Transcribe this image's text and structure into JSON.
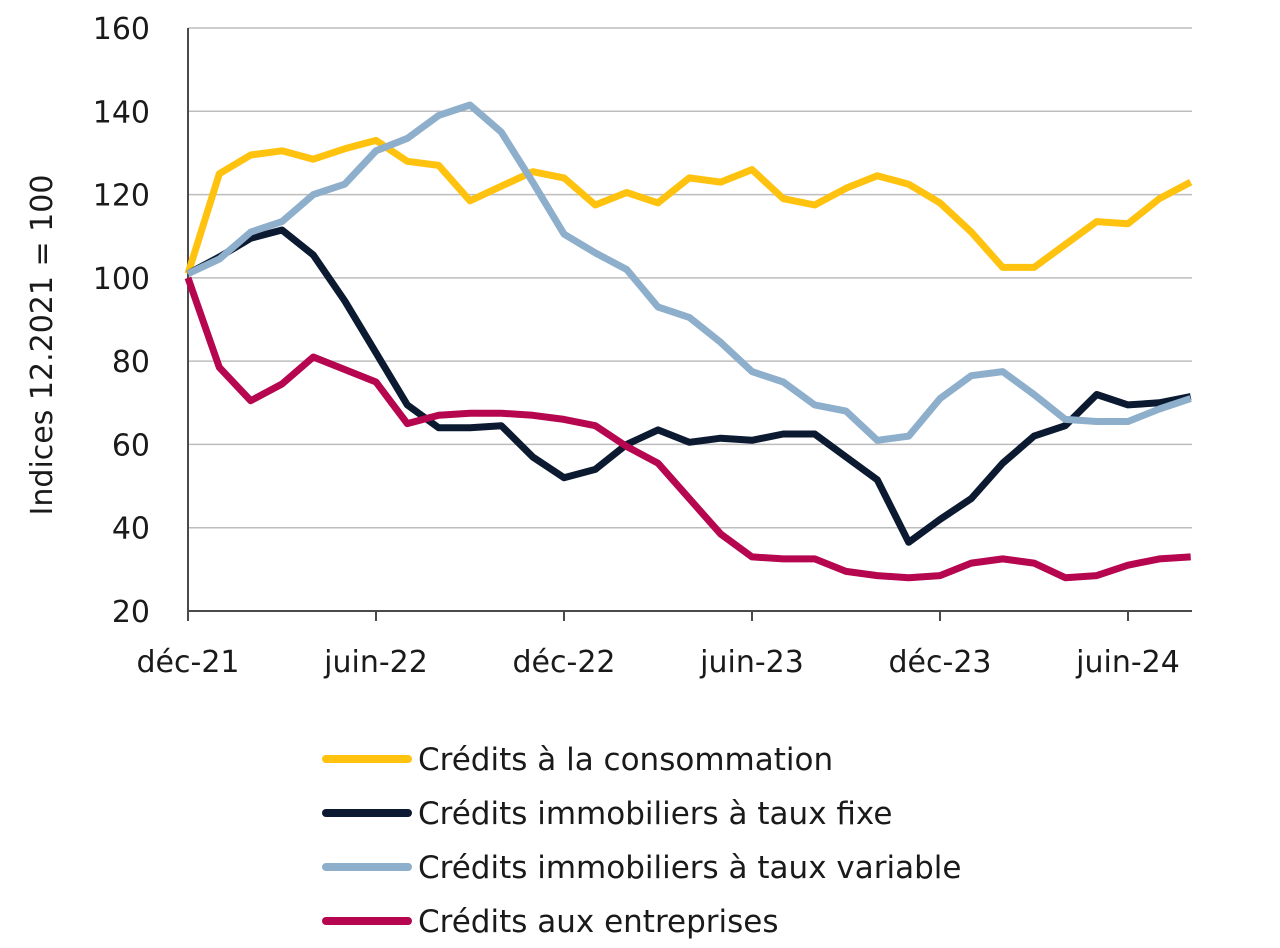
{
  "chart_data": {
    "type": "line",
    "ylabel": "Indices 12.2021 = 100",
    "ylim": [
      20,
      160
    ],
    "yticks": [
      "20",
      "40",
      "60",
      "80",
      "100",
      "120",
      "140",
      "160"
    ],
    "x_tick_labels": [
      {
        "index": 0,
        "label": "déc-21"
      },
      {
        "index": 6,
        "label": "juin-22"
      },
      {
        "index": 12,
        "label": "déc-22"
      },
      {
        "index": 18,
        "label": "juin-23"
      },
      {
        "index": 24,
        "label": "déc-23"
      },
      {
        "index": 30,
        "label": "juin-24"
      }
    ],
    "x": [
      "déc-21",
      "janv-22",
      "févr-22",
      "mars-22",
      "avr-22",
      "mai-22",
      "juin-22",
      "juil-22",
      "août-22",
      "sept-22",
      "oct-22",
      "nov-22",
      "déc-22",
      "janv-23",
      "févr-23",
      "mars-23",
      "avr-23",
      "mai-23",
      "juin-23",
      "juil-23",
      "août-23",
      "sept-23",
      "oct-23",
      "nov-23",
      "déc-23",
      "janv-24",
      "févr-24",
      "mars-24",
      "avr-24",
      "mai-24",
      "juin-24",
      "juil-24",
      "août-24"
    ],
    "grid": true,
    "legend_position": "bottom",
    "series": [
      {
        "name": "Crédits à la consommation",
        "color": "#FFC20E",
        "values": [
          101,
          125,
          129.5,
          130.5,
          128.5,
          131,
          133,
          128,
          127,
          118.5,
          122,
          125.5,
          124,
          117.5,
          120.5,
          118,
          124,
          123,
          126,
          119,
          117.5,
          121.5,
          124.5,
          122.5,
          118,
          111,
          102.5,
          102.5,
          108,
          113.5,
          113,
          119,
          123
        ]
      },
      {
        "name": "Crédits immobiliers à taux fixe",
        "color": "#0B1A30",
        "values": [
          101,
          105,
          109.5,
          111.5,
          105.5,
          94.5,
          82,
          69.5,
          64,
          64,
          64.5,
          57,
          52,
          54,
          60,
          63.5,
          60.5,
          61.5,
          61,
          62.5,
          62.5,
          57,
          51.5,
          36.5,
          42,
          47,
          55.5,
          62,
          64.5,
          72,
          69.5,
          70,
          71.5
        ]
      },
      {
        "name": "Crédits immobiliers à taux variable",
        "color": "#8EAFCB",
        "values": [
          101,
          104.5,
          111,
          113.5,
          120,
          122.5,
          130.5,
          133.5,
          139,
          141.5,
          135,
          123,
          110.5,
          106,
          102,
          93,
          90.5,
          84.5,
          77.5,
          75,
          69.5,
          68,
          61,
          62,
          71,
          76.5,
          77.5,
          72,
          66,
          65.5,
          65.5,
          68.5,
          71
        ]
      },
      {
        "name": "Crédits aux entreprises",
        "color": "#B5064F",
        "values": [
          100,
          78.5,
          70.5,
          74.5,
          81,
          78,
          75,
          65,
          67,
          67.5,
          67.5,
          67,
          66,
          64.5,
          59.5,
          55.5,
          47,
          38.5,
          33,
          32.5,
          32.5,
          29.5,
          28.5,
          28,
          28.5,
          31.5,
          32.5,
          31.5,
          28,
          28.5,
          31,
          32.5,
          33
        ]
      }
    ]
  }
}
